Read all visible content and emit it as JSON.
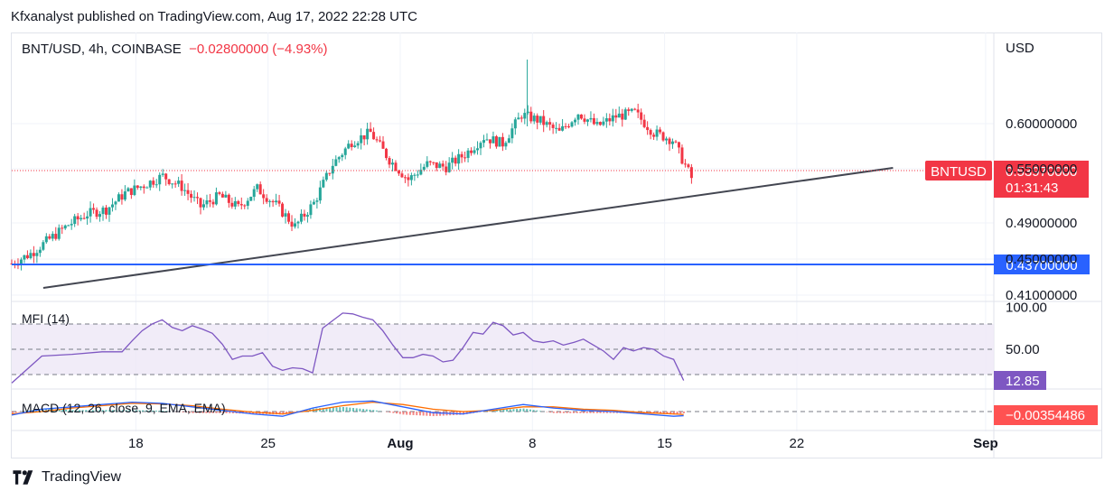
{
  "header": {
    "publisher": "Kfxanalyst published on TradingView.com, Aug 17, 2022 22:28 UTC"
  },
  "legend": {
    "symbol": "BNT/USD, 4h, COINBASE",
    "change": "−0.02800000 (−4.93%)"
  },
  "axis": {
    "currency": "USD"
  },
  "footer": {
    "brand": "TradingView"
  },
  "colors": {
    "up": "#26a69a",
    "down": "#f23645",
    "trendline": "#434651",
    "support": "#2962ff",
    "mfi": "#7e57c2",
    "macd_line": "#2962ff",
    "signal_line": "#ff6d00"
  },
  "chart_data": [
    {
      "type": "candlestick",
      "title": "BNT/USD, 4h, COINBASE",
      "y_axis_ticks": [
        "0.60000000",
        "0.55000000",
        "0.49000000",
        "0.45000000",
        "0.41000000"
      ],
      "x_axis_ticks": [
        "18",
        "25",
        "Aug",
        "8",
        "15",
        "22",
        "Sep"
      ],
      "ylim": [
        0.4,
        0.68
      ],
      "last_price": "0.53970000",
      "last_price_label": "BNTUSD",
      "countdown": "01:31:43",
      "support_level": "0.43700000",
      "support_value": 0.437,
      "trendline": {
        "start": [
          "Jul 13",
          0.425
        ],
        "end": [
          "Aug 27",
          0.553
        ]
      },
      "close_path": [
        {
          "date": "Jul 12",
          "close": 0.445
        },
        {
          "date": "Jul 13",
          "close": 0.456
        },
        {
          "date": "Jul 14",
          "close": 0.472
        },
        {
          "date": "Jul 15",
          "close": 0.488
        },
        {
          "date": "Jul 16",
          "close": 0.5
        },
        {
          "date": "Jul 17",
          "close": 0.505
        },
        {
          "date": "Jul 18",
          "close": 0.523
        },
        {
          "date": "Jul 19",
          "close": 0.532
        },
        {
          "date": "Jul 20",
          "close": 0.542
        },
        {
          "date": "Jul 21",
          "close": 0.53
        },
        {
          "date": "Jul 22",
          "close": 0.508
        },
        {
          "date": "Jul 23",
          "close": 0.52
        },
        {
          "date": "Jul 24",
          "close": 0.507
        },
        {
          "date": "Jul 25",
          "close": 0.528
        },
        {
          "date": "Jul 26",
          "close": 0.51
        },
        {
          "date": "Jul 27",
          "close": 0.486
        },
        {
          "date": "Jul 28",
          "close": 0.512
        },
        {
          "date": "Jul 29",
          "close": 0.555
        },
        {
          "date": "Jul 30",
          "close": 0.58
        },
        {
          "date": "Jul 31",
          "close": 0.59
        },
        {
          "date": "Aug 1",
          "close": 0.56
        },
        {
          "date": "Aug 2",
          "close": 0.538
        },
        {
          "date": "Aug 3",
          "close": 0.555
        },
        {
          "date": "Aug 4",
          "close": 0.552
        },
        {
          "date": "Aug 5",
          "close": 0.566
        },
        {
          "date": "Aug 6",
          "close": 0.585
        },
        {
          "date": "Aug 7",
          "close": 0.578
        },
        {
          "date": "Aug 8",
          "close": 0.61
        },
        {
          "date": "Aug 9",
          "close": 0.603
        },
        {
          "date": "Aug 10",
          "close": 0.59
        },
        {
          "date": "Aug 11",
          "close": 0.612
        },
        {
          "date": "Aug 12",
          "close": 0.597
        },
        {
          "date": "Aug 13",
          "close": 0.608
        },
        {
          "date": "Aug 14",
          "close": 0.612
        },
        {
          "date": "Aug 15",
          "close": 0.59
        },
        {
          "date": "Aug 16",
          "close": 0.582
        },
        {
          "date": "Aug 17",
          "close": 0.5397
        }
      ]
    },
    {
      "type": "line",
      "title": "MFI (14)",
      "y_axis_ticks": [
        "100.00",
        "50.00"
      ],
      "ylim": [
        0,
        100
      ],
      "bands": [
        20,
        50,
        80
      ],
      "last_value": "12.85",
      "values": [
        [
          0,
          10
        ],
        [
          3,
          42
        ],
        [
          6,
          44
        ],
        [
          9,
          47
        ],
        [
          11,
          47
        ],
        [
          12,
          60
        ],
        [
          13,
          72
        ],
        [
          14,
          80
        ],
        [
          15,
          85
        ],
        [
          16,
          76
        ],
        [
          17,
          72
        ],
        [
          18,
          78
        ],
        [
          19,
          74
        ],
        [
          20,
          69
        ],
        [
          21,
          56
        ],
        [
          22,
          38
        ],
        [
          23,
          42
        ],
        [
          24,
          42
        ],
        [
          25,
          46
        ],
        [
          26,
          30
        ],
        [
          27,
          25
        ],
        [
          28,
          28
        ],
        [
          29,
          27
        ],
        [
          30,
          22
        ],
        [
          31,
          75
        ],
        [
          32,
          84
        ],
        [
          33,
          93
        ],
        [
          34,
          92
        ],
        [
          35,
          88
        ],
        [
          36,
          85
        ],
        [
          37,
          72
        ],
        [
          38,
          55
        ],
        [
          39,
          40
        ],
        [
          40,
          40
        ],
        [
          41,
          44
        ],
        [
          42,
          42
        ],
        [
          43,
          35
        ],
        [
          44,
          37
        ],
        [
          45,
          52
        ],
        [
          46,
          70
        ],
        [
          47,
          68
        ],
        [
          48,
          82
        ],
        [
          49,
          78
        ],
        [
          50,
          67
        ],
        [
          51,
          70
        ],
        [
          52,
          60
        ],
        [
          53,
          58
        ],
        [
          54,
          60
        ],
        [
          55,
          55
        ],
        [
          56,
          58
        ],
        [
          57,
          62
        ],
        [
          58,
          55
        ],
        [
          59,
          48
        ],
        [
          60,
          38
        ],
        [
          61,
          52
        ],
        [
          62,
          48
        ],
        [
          63,
          52
        ],
        [
          64,
          50
        ],
        [
          65,
          42
        ],
        [
          66,
          38
        ],
        [
          67,
          13
        ]
      ]
    },
    {
      "type": "line",
      "title": "MACD (12, 26, close, 9, EMA, EMA)",
      "last_value": "−0.00354486",
      "ylim": [
        -0.012,
        0.012
      ],
      "series": [
        {
          "name": "MACD",
          "values": [
            [
              0,
              -0.003
            ],
            [
              3,
              0.002
            ],
            [
              6,
              0.004
            ],
            [
              9,
              0.006
            ],
            [
              12,
              0.008
            ],
            [
              15,
              0.007
            ],
            [
              18,
              0.004
            ],
            [
              21,
              0.001
            ],
            [
              24,
              -0.002
            ],
            [
              27,
              -0.004
            ],
            [
              30,
              0.003
            ],
            [
              33,
              0.008
            ],
            [
              36,
              0.009
            ],
            [
              39,
              0.004
            ],
            [
              42,
              -0.001
            ],
            [
              45,
              -0.002
            ],
            [
              48,
              0.002
            ],
            [
              51,
              0.006
            ],
            [
              54,
              0.003
            ],
            [
              57,
              0.001
            ],
            [
              60,
              0.0
            ],
            [
              63,
              -0.002
            ],
            [
              66,
              -0.004
            ],
            [
              67,
              -0.0035
            ]
          ]
        },
        {
          "name": "Signal",
          "values": [
            [
              0,
              -0.002
            ],
            [
              3,
              0.0
            ],
            [
              6,
              0.003
            ],
            [
              9,
              0.005
            ],
            [
              12,
              0.007
            ],
            [
              15,
              0.0065
            ],
            [
              18,
              0.005
            ],
            [
              21,
              0.002
            ],
            [
              24,
              -0.0005
            ],
            [
              27,
              -0.002
            ],
            [
              30,
              0.001
            ],
            [
              33,
              0.005
            ],
            [
              36,
              0.008
            ],
            [
              39,
              0.006
            ],
            [
              42,
              0.002
            ],
            [
              45,
              0.0
            ],
            [
              48,
              0.001
            ],
            [
              51,
              0.004
            ],
            [
              54,
              0.004
            ],
            [
              57,
              0.002
            ],
            [
              60,
              0.001
            ],
            [
              63,
              -0.001
            ],
            [
              66,
              -0.002
            ],
            [
              67,
              -0.0025
            ]
          ]
        }
      ]
    }
  ]
}
